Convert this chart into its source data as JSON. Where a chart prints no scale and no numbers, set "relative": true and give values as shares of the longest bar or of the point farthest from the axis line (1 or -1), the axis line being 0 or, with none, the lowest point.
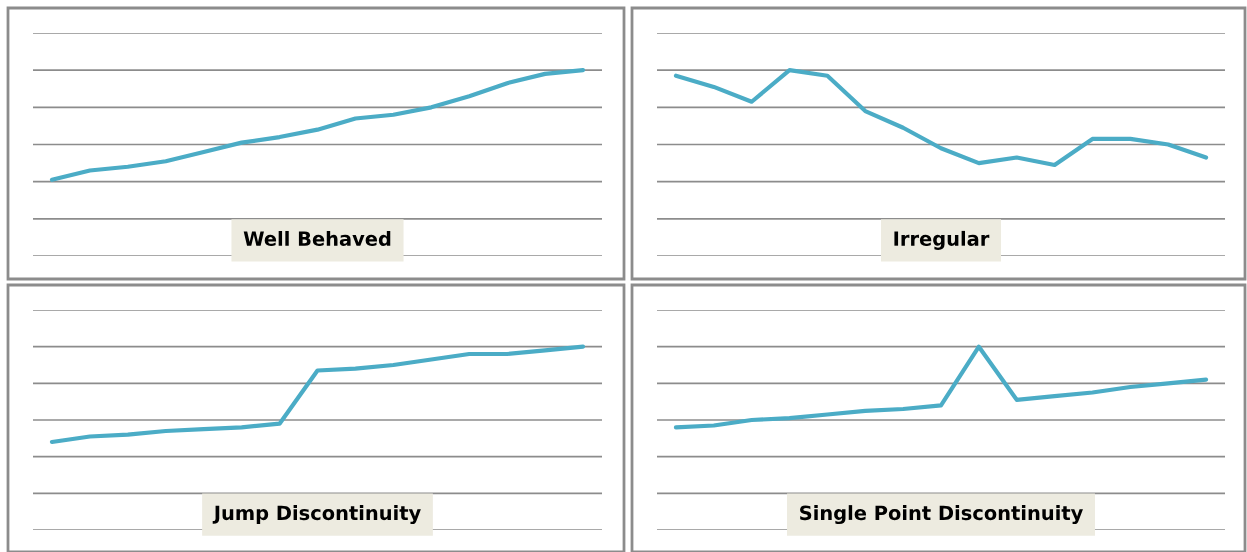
{
  "chart_data": [
    {
      "type": "line",
      "title": "Well Behaved",
      "relative": true,
      "grid": "y",
      "categories": [
        null,
        null,
        null,
        null,
        null,
        null,
        null,
        null,
        null,
        null,
        null,
        null,
        null,
        null,
        null
      ],
      "series": [
        {
          "color": "#4bacc6",
          "values": [
            0.41,
            0.46,
            0.48,
            0.51,
            0.56,
            0.61,
            0.64,
            0.68,
            0.74,
            0.76,
            0.8,
            0.86,
            0.93,
            0.98,
            1
          ]
        }
      ]
    },
    {
      "type": "line",
      "title": "Irregular",
      "relative": true,
      "grid": "y",
      "categories": [
        null,
        null,
        null,
        null,
        null,
        null,
        null,
        null,
        null,
        null,
        null,
        null,
        null,
        null,
        null
      ],
      "series": [
        {
          "color": "#4bacc6",
          "values": [
            0.97,
            0.91,
            0.83,
            1,
            0.97,
            0.78,
            0.69,
            0.58,
            0.5,
            0.53,
            0.49,
            0.63,
            0.63,
            0.6,
            0.53
          ]
        }
      ]
    },
    {
      "type": "line",
      "title": "Jump Discontinuity",
      "relative": true,
      "grid": "y",
      "categories": [
        null,
        null,
        null,
        null,
        null,
        null,
        null,
        null,
        null,
        null,
        null,
        null,
        null,
        null,
        null
      ],
      "series": [
        {
          "color": "#4bacc6",
          "values": [
            0.48,
            0.51,
            0.52,
            0.54,
            0.55,
            0.56,
            0.58,
            0.87,
            0.88,
            0.9,
            0.93,
            0.96,
            0.96,
            0.98,
            1
          ]
        }
      ]
    },
    {
      "type": "line",
      "title": "Single Point Discontinuity",
      "relative": true,
      "grid": "y",
      "categories": [
        null,
        null,
        null,
        null,
        null,
        null,
        null,
        null,
        null,
        null,
        null,
        null,
        null,
        null,
        null
      ],
      "series": [
        {
          "color": "#4bacc6",
          "values": [
            0.56,
            0.57,
            0.6,
            0.61,
            0.63,
            0.65,
            0.66,
            0.68,
            1,
            0.71,
            0.73,
            0.75,
            0.78,
            0.8,
            0.82
          ]
        }
      ]
    }
  ]
}
